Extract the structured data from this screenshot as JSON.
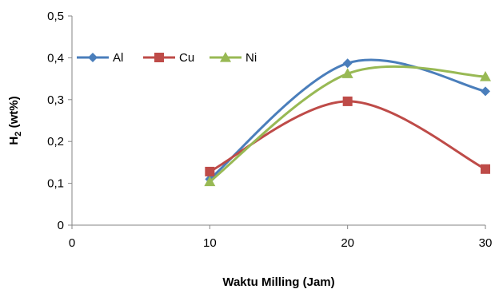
{
  "chart_data": {
    "type": "line",
    "xlabel": "Waktu Milling (Jam)",
    "ylabel": {
      "main": "H",
      "sub": "2",
      "rest": " (wt%)"
    },
    "x_ticks": [
      "0",
      "10",
      "20",
      "30"
    ],
    "y_ticks": [
      "0",
      "0,1",
      "0,2",
      "0,3",
      "0,4",
      "0,5"
    ],
    "xlim": [
      0,
      30
    ],
    "ylim": [
      0,
      0.5
    ],
    "grid": false,
    "smooth": true,
    "legend_position": "top-left",
    "x": [
      10,
      20,
      30
    ],
    "series": [
      {
        "name": "Al",
        "values": [
          0.11,
          0.387,
          0.32
        ],
        "color": "#4a7ebb",
        "marker": "diamond"
      },
      {
        "name": "Cu",
        "values": [
          0.128,
          0.296,
          0.134
        ],
        "color": "#be4b48",
        "marker": "square"
      },
      {
        "name": "Ni",
        "values": [
          0.104,
          0.362,
          0.355
        ],
        "color": "#98b954",
        "marker": "triangle"
      }
    ]
  }
}
